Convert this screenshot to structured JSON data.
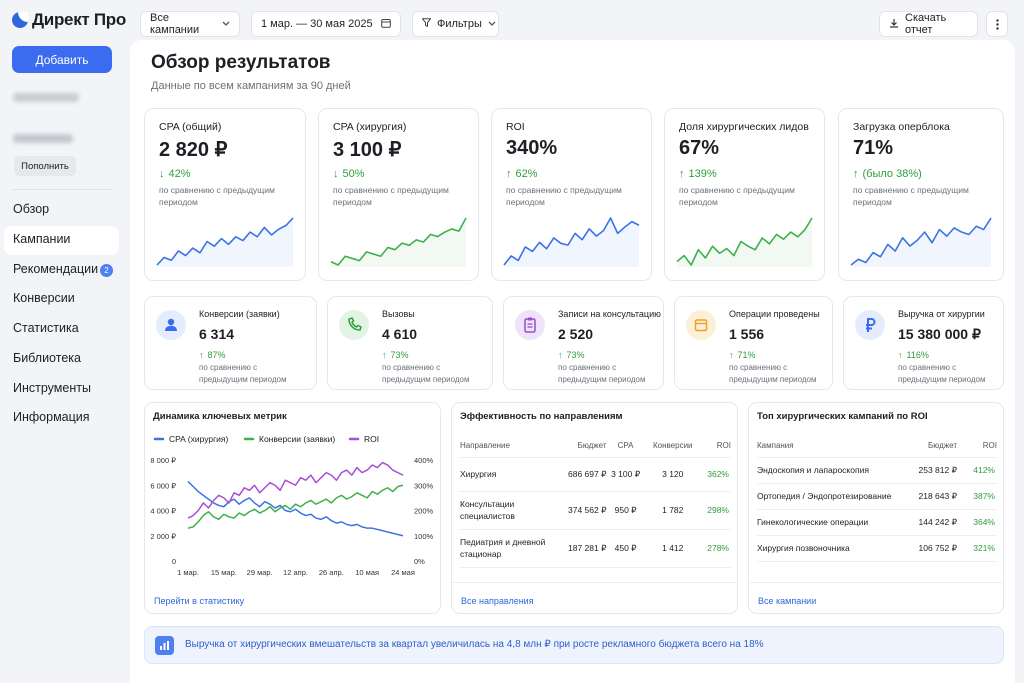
{
  "sidebar": {
    "logo": "Директ Про",
    "add_button": "Добавить",
    "topup_button": "Пополнить",
    "nav": [
      "Обзор",
      "Кампании",
      "Рекомендации",
      "Конверсии",
      "Статистика",
      "Библиотека",
      "Инструменты",
      "Информация"
    ],
    "badge": 2
  },
  "toolbar": {
    "campaign_filter": "Все кампании",
    "date_range": "1 мар. — 30 мая 2025",
    "filters": "Фильтры",
    "download": "Скачать отчет"
  },
  "header": {
    "title": "Обзор результатов",
    "subtitle": "Данные по всем кампаниям за 90 дней"
  },
  "comparison_note": "по сравнению с предыдущим периодом",
  "kpis": [
    {
      "label": "CPA (общий)",
      "value": "2 820 ₽",
      "change": "42%",
      "color": "#3b73e6",
      "sparkline": [
        20,
        28,
        25,
        35,
        30,
        38,
        33,
        45,
        40,
        48,
        42,
        50,
        46,
        55,
        50,
        60,
        52,
        58,
        62,
        70
      ]
    },
    {
      "label": "CPA (хирургия)",
      "value": "3 100 ₽",
      "change": "50%",
      "color": "#3fb14b",
      "sparkline": [
        15,
        12,
        20,
        18,
        16,
        24,
        22,
        20,
        28,
        26,
        32,
        30,
        35,
        33,
        40,
        38,
        42,
        45,
        43,
        55
      ]
    },
    {
      "label": "ROI",
      "value": "340%",
      "change": "62%",
      "color": "#3b73e6",
      "sparkline": [
        20,
        30,
        25,
        40,
        35,
        45,
        38,
        50,
        44,
        42,
        55,
        48,
        60,
        52,
        58,
        72,
        55,
        62,
        68,
        64
      ]
    },
    {
      "label": "Доля хирургических лидов",
      "value": "67%",
      "change": "139%",
      "color": "#3fb14b",
      "sparkline": [
        25,
        30,
        22,
        35,
        28,
        38,
        32,
        36,
        30,
        42,
        38,
        35,
        45,
        40,
        48,
        44,
        50,
        46,
        52,
        62
      ]
    },
    {
      "label": "Загрузка оперблока",
      "value": "71%",
      "change": "(было 38%)",
      "color": "#3b73e6",
      "sparkline": [
        15,
        22,
        18,
        30,
        25,
        40,
        32,
        48,
        38,
        45,
        55,
        42,
        58,
        50,
        60,
        55,
        52,
        62,
        58,
        72
      ]
    }
  ],
  "stats": [
    {
      "label": "Конверсии (заявки)",
      "value": "6 314",
      "change": "87%"
    },
    {
      "label": "Вызовы",
      "value": "4 610",
      "change": "73%"
    },
    {
      "label": "Записи на консультацию",
      "value": "2 520",
      "change": "73%"
    },
    {
      "label": "Операции проведены",
      "value": "1 556",
      "change": "71%"
    },
    {
      "label": "Выручка от хирургии",
      "value": "15 380 000 ₽",
      "change": "116%"
    }
  ],
  "chart_data": {
    "type": "line",
    "title": "Динамика ключевых метрик",
    "categories": [
      "1 мар.",
      null,
      null,
      null,
      null,
      null,
      null,
      "15 мар.",
      null,
      null,
      null,
      null,
      null,
      null,
      "29 мар.",
      null,
      null,
      null,
      null,
      null,
      null,
      "12 апр.",
      null,
      null,
      null,
      null,
      null,
      null,
      "26 апр.",
      null,
      null,
      null,
      null,
      null,
      null,
      "10 мая",
      null,
      null,
      null,
      null,
      null,
      null,
      "24 мая"
    ],
    "series": [
      {
        "name": "CPA (хирургия)",
        "color": "#3b73e6",
        "values": [
          6300,
          5900,
          5500,
          5200,
          4900,
          4600,
          4400,
          4300,
          4700,
          4900,
          4500,
          4800,
          5000,
          4600,
          4300,
          4700,
          4500,
          4200,
          4400,
          4000,
          3900,
          4100,
          3800,
          3600,
          3700,
          3400,
          3300,
          3500,
          3200,
          3000,
          3100,
          2900,
          2800,
          2900,
          2700,
          2600,
          2600,
          2500,
          2400,
          2300,
          2200,
          2100,
          2000
        ]
      },
      {
        "name": "Конверсии (заявки)",
        "color": "#3fb14b",
        "values": [
          2600,
          2700,
          3100,
          3600,
          3900,
          3500,
          3300,
          3700,
          3500,
          3400,
          3800,
          3600,
          3900,
          4100,
          3800,
          4000,
          4300,
          3900,
          4200,
          4400,
          4100,
          4500,
          4300,
          4600,
          4800,
          4500,
          4700,
          4900,
          4600,
          5000,
          5200,
          4900,
          5100,
          5400,
          5200,
          5000,
          5500,
          5300,
          5600,
          5800,
          5500,
          5900,
          6000
        ]
      },
      {
        "name": "ROI",
        "color": "#a64fd8",
        "axis": "y2",
        "values": [
          170,
          180,
          200,
          230,
          210,
          240,
          260,
          250,
          230,
          270,
          260,
          290,
          280,
          300,
          270,
          290,
          310,
          300,
          280,
          320,
          310,
          300,
          330,
          320,
          340,
          310,
          330,
          350,
          340,
          320,
          350,
          360,
          340,
          370,
          350,
          360,
          380,
          370,
          390,
          380,
          360,
          350,
          340
        ]
      }
    ],
    "ylim": [
      0,
      8000
    ],
    "yticks": [
      0,
      {
        "value": 2000,
        "label": "2 000 ₽"
      },
      {
        "value": 4000,
        "label": "4 000 ₽"
      },
      {
        "value": 6000,
        "label": "6 000 ₽"
      },
      {
        "value": 8000,
        "label": "8 000 ₽"
      }
    ],
    "y2lim": [
      0,
      400
    ],
    "y2ticks": [
      {
        "value": 0,
        "label": "0%"
      },
      {
        "value": 100,
        "label": "100%"
      },
      {
        "value": 200,
        "label": "200%"
      },
      {
        "value": 300,
        "label": "300%"
      },
      {
        "value": 400,
        "label": "400%"
      }
    ],
    "link": "Перейти в статистику"
  },
  "efficiency": {
    "title": "Эффективность по направлениям",
    "columns": [
      "Направление",
      "Бюджет",
      "CPA",
      "Конверсии",
      "ROI"
    ],
    "rows": [
      [
        "Хирургия",
        "686 697 ₽",
        "3 100 ₽",
        "3 120",
        "362%"
      ],
      [
        "Консультации специалистов",
        "374 562 ₽",
        "950 ₽",
        "1 782",
        "298%"
      ],
      [
        "Педиатрия и дневной стационар",
        "187 281 ₽",
        "450 ₽",
        "1 412",
        "278%"
      ]
    ],
    "link": "Все направления"
  },
  "top_campaigns": {
    "title": "Топ хирургических кампаний по ROI",
    "columns": [
      "Кампания",
      "Бюджет",
      "ROI"
    ],
    "rows": [
      [
        "Эндоскопия и лапароскопия",
        "253 812 ₽",
        "412%"
      ],
      [
        "Ортопедия / Эндопротезирование",
        "218 643 ₽",
        "387%"
      ],
      [
        "Гинекологические операции",
        "144 242 ₽",
        "364%"
      ],
      [
        "Хирургия позвоночника",
        "106 752 ₽",
        "321%"
      ]
    ],
    "link": "Все кампании"
  },
  "banner": "Выручка от хирургических вмешательств за квартал увеличилась на 4,8 млн ₽ при росте рекламного бюджета всего на 18%"
}
